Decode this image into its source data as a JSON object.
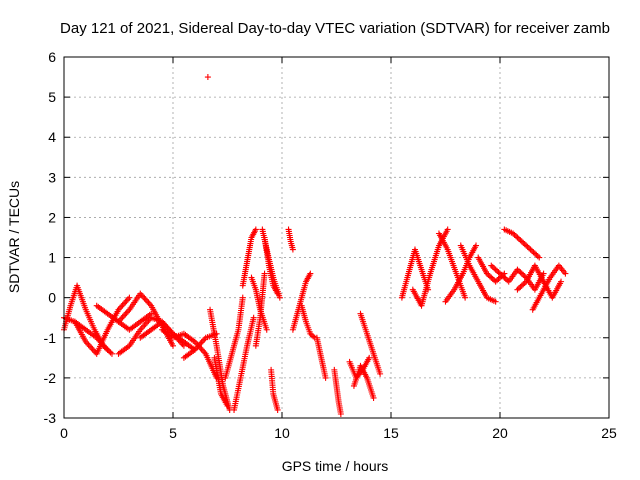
{
  "chart_data": {
    "type": "scatter",
    "title": "Day 121 of 2021, Sidereal Day-to-day VTEC variation (SDTVAR) for receiver zamb",
    "xlabel": "GPS time / hours",
    "ylabel": "SDTVAR / TECUs",
    "xlim": [
      0,
      25
    ],
    "ylim": [
      -3,
      6
    ],
    "xticks": [
      0,
      5,
      10,
      15,
      20,
      25
    ],
    "yticks": [
      -3,
      -2,
      -1,
      0,
      1,
      2,
      3,
      4,
      5,
      6
    ],
    "grid": true,
    "marker": "+",
    "color": "#ff0000",
    "outliers": [
      {
        "x": 6.6,
        "y": 5.5
      }
    ],
    "tracks": [
      {
        "x": [
          0.0,
          0.3,
          0.6,
          1.0,
          1.4,
          1.8,
          2.2
        ],
        "y": [
          -0.8,
          -0.2,
          0.3,
          -0.3,
          -0.8,
          -1.2,
          -1.4
        ]
      },
      {
        "x": [
          0.0,
          0.5,
          1.0,
          1.5,
          2.0
        ],
        "y": [
          -0.5,
          -0.6,
          -0.8,
          -1.0,
          -1.3
        ]
      },
      {
        "x": [
          0.5,
          1.0,
          1.5,
          2.0,
          2.5,
          3.0
        ],
        "y": [
          -0.6,
          -1.1,
          -1.4,
          -0.8,
          -0.3,
          0.0
        ]
      },
      {
        "x": [
          1.5,
          2.0,
          2.5,
          3.0,
          3.5,
          4.0
        ],
        "y": [
          -0.2,
          -0.4,
          -0.6,
          -0.8,
          -0.6,
          -0.4
        ]
      },
      {
        "x": [
          2.5,
          3.0,
          3.5,
          4.0,
          4.5,
          5.0
        ],
        "y": [
          -0.6,
          -0.3,
          0.1,
          -0.2,
          -0.7,
          -1.2
        ]
      },
      {
        "x": [
          2.5,
          3.0,
          3.5,
          4.0,
          4.5,
          5.0,
          5.5
        ],
        "y": [
          -1.4,
          -1.2,
          -0.8,
          -0.5,
          -0.6,
          -0.9,
          -1.2
        ]
      },
      {
        "x": [
          3.5,
          4.0,
          4.5,
          5.0,
          5.5,
          6.0
        ],
        "y": [
          -1.0,
          -0.8,
          -0.6,
          -0.9,
          -1.1,
          -1.3
        ]
      },
      {
        "x": [
          4.5,
          5.0,
          5.5,
          6.0,
          6.5,
          7.0
        ],
        "y": [
          -0.8,
          -1.0,
          -0.9,
          -1.1,
          -1.4,
          -2.0
        ]
      },
      {
        "x": [
          5.5,
          6.0,
          6.5,
          7.0
        ],
        "y": [
          -1.5,
          -1.3,
          -1.0,
          -0.9
        ]
      },
      {
        "x": [
          6.7,
          7.0,
          7.3,
          7.6
        ],
        "y": [
          -0.3,
          -1.2,
          -2.2,
          -2.8
        ]
      },
      {
        "x": [
          6.9,
          7.2,
          7.5
        ],
        "y": [
          -1.5,
          -2.4,
          -2.7
        ]
      },
      {
        "x": [
          7.4,
          7.7,
          8.0,
          8.2
        ],
        "y": [
          -2.0,
          -1.4,
          -0.8,
          0.0
        ]
      },
      {
        "x": [
          7.8,
          8.1,
          8.4,
          8.7
        ],
        "y": [
          -2.8,
          -2.0,
          -1.2,
          -0.5
        ]
      },
      {
        "x": [
          8.2,
          8.4,
          8.6,
          8.8
        ],
        "y": [
          0.3,
          0.9,
          1.5,
          1.7
        ]
      },
      {
        "x": [
          8.6,
          8.8,
          9.0,
          9.3
        ],
        "y": [
          0.5,
          0.2,
          -0.3,
          -0.8
        ]
      },
      {
        "x": [
          8.8,
          9.0,
          9.2
        ],
        "y": [
          -1.2,
          -0.5,
          0.6
        ]
      },
      {
        "x": [
          9.1,
          9.3,
          9.6,
          9.9
        ],
        "y": [
          1.7,
          1.2,
          0.5,
          0.0
        ]
      },
      {
        "x": [
          9.2,
          9.4,
          9.6,
          9.8
        ],
        "y": [
          1.5,
          0.8,
          0.3,
          0.1
        ]
      },
      {
        "x": [
          9.5,
          9.6,
          9.8
        ],
        "y": [
          -1.8,
          -2.4,
          -2.8
        ]
      },
      {
        "x": [
          10.3,
          10.4,
          10.5
        ],
        "y": [
          1.7,
          1.4,
          1.2
        ]
      },
      {
        "x": [
          10.5,
          10.7,
          10.9,
          11.1,
          11.3
        ],
        "y": [
          -0.8,
          -0.4,
          0.0,
          0.4,
          0.6
        ]
      },
      {
        "x": [
          10.9,
          11.1,
          11.3,
          11.5
        ],
        "y": [
          -0.2,
          -0.6,
          -0.9,
          -1.0
        ]
      },
      {
        "x": [
          11.6,
          11.8,
          12.0
        ],
        "y": [
          -1.0,
          -1.5,
          -2.0
        ]
      },
      {
        "x": [
          12.4,
          12.5,
          12.6,
          12.7
        ],
        "y": [
          -1.8,
          -2.2,
          -2.6,
          -2.9
        ]
      },
      {
        "x": [
          13.1,
          13.4,
          13.7,
          14.0
        ],
        "y": [
          -1.6,
          -2.0,
          -1.8,
          -1.5
        ]
      },
      {
        "x": [
          13.3,
          13.6,
          13.9,
          14.2
        ],
        "y": [
          -2.2,
          -1.7,
          -2.0,
          -2.5
        ]
      },
      {
        "x": [
          13.6,
          13.9,
          14.2,
          14.5
        ],
        "y": [
          -0.4,
          -0.9,
          -1.4,
          -1.9
        ]
      },
      {
        "x": [
          15.5,
          15.8,
          16.1,
          16.4,
          16.7
        ],
        "y": [
          0.0,
          0.6,
          1.2,
          0.7,
          0.2
        ]
      },
      {
        "x": [
          16.0,
          16.4,
          16.8,
          17.2,
          17.6
        ],
        "y": [
          0.2,
          -0.2,
          0.6,
          1.3,
          1.7
        ]
      },
      {
        "x": [
          17.2,
          17.6,
          18.0,
          18.4
        ],
        "y": [
          1.6,
          1.2,
          0.6,
          0.0
        ]
      },
      {
        "x": [
          17.5,
          17.9,
          18.3,
          18.6,
          18.9
        ],
        "y": [
          -0.1,
          0.2,
          0.6,
          1.0,
          1.3
        ]
      },
      {
        "x": [
          18.2,
          18.6,
          19.0,
          19.4,
          19.8
        ],
        "y": [
          1.3,
          0.8,
          0.4,
          0.0,
          -0.1
        ]
      },
      {
        "x": [
          19.0,
          19.4,
          19.8,
          20.2
        ],
        "y": [
          1.0,
          0.6,
          0.4,
          0.6
        ]
      },
      {
        "x": [
          20.2,
          20.6,
          21.0,
          21.4,
          21.8
        ],
        "y": [
          1.7,
          1.6,
          1.4,
          1.2,
          1.0
        ]
      },
      {
        "x": [
          19.6,
          20.0,
          20.4,
          20.8,
          21.2,
          21.6,
          22.0
        ],
        "y": [
          0.8,
          0.6,
          0.4,
          0.7,
          0.5,
          0.2,
          0.6
        ]
      },
      {
        "x": [
          20.8,
          21.2,
          21.6,
          22.0,
          22.4,
          22.8
        ],
        "y": [
          0.2,
          0.4,
          0.8,
          0.4,
          0.0,
          0.4
        ]
      },
      {
        "x": [
          21.5,
          21.9,
          22.3,
          22.7,
          23.0
        ],
        "y": [
          -0.3,
          0.1,
          0.5,
          0.8,
          0.6
        ]
      }
    ]
  }
}
